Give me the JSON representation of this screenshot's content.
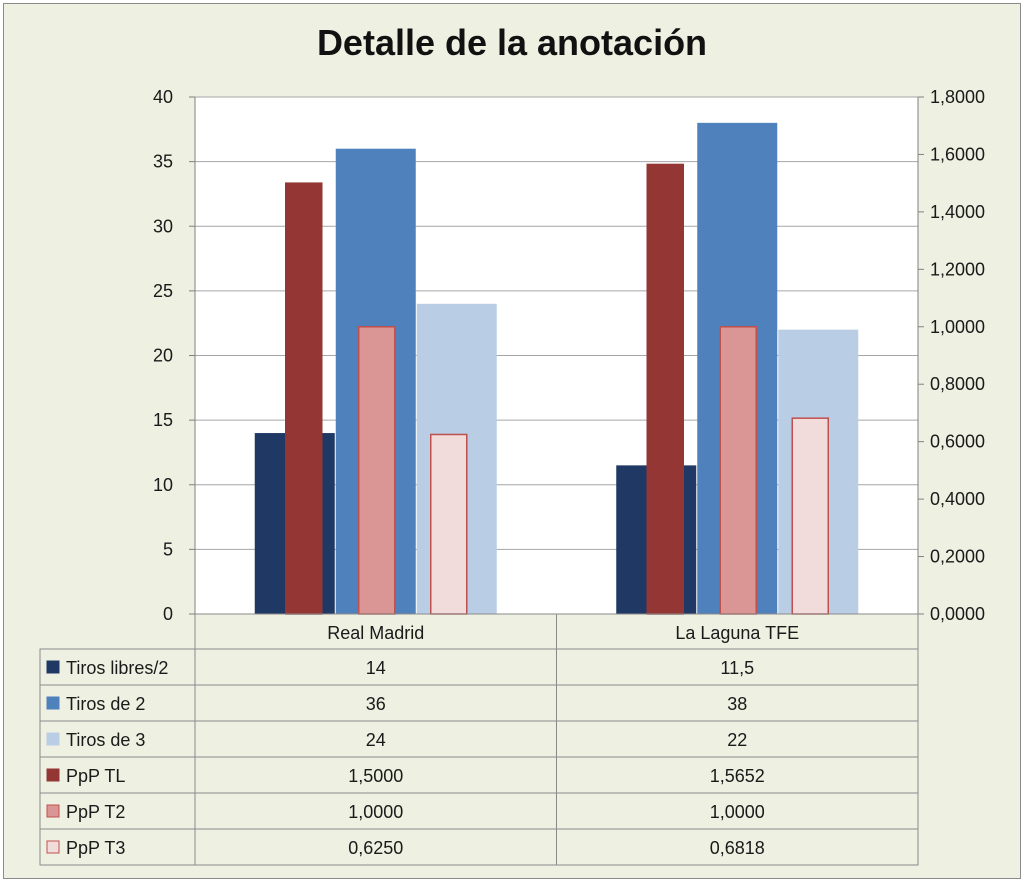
{
  "chart_data": {
    "type": "bar",
    "title": "Detalle de la anotación",
    "categories": [
      "Real Madrid",
      "La Laguna TFE"
    ],
    "y_left": {
      "min": 0,
      "max": 40,
      "ticks": [
        "0",
        "5",
        "10",
        "15",
        "20",
        "25",
        "30",
        "35",
        "40"
      ]
    },
    "y_right": {
      "min": 0,
      "max": 1.8,
      "ticks": [
        "0,0000",
        "0,2000",
        "0,4000",
        "0,6000",
        "0,8000",
        "1,0000",
        "1,2000",
        "1,4000",
        "1,6000",
        "1,8000"
      ]
    },
    "grid": true,
    "legend": "data-table",
    "series": [
      {
        "name": "Tiros libres/2",
        "axis": "left",
        "values": [
          14,
          11.5
        ],
        "labels": [
          "14",
          "11,5"
        ],
        "color": "#1f3864",
        "stroke": "#1f3864"
      },
      {
        "name": "Tiros de 2",
        "axis": "left",
        "values": [
          36,
          38
        ],
        "labels": [
          "36",
          "38"
        ],
        "color": "#4f81bd",
        "stroke": "#4f81bd"
      },
      {
        "name": "Tiros de 3",
        "axis": "left",
        "values": [
          24,
          22
        ],
        "labels": [
          "24",
          "22"
        ],
        "color": "#b9cde5",
        "stroke": "#b9cde5"
      },
      {
        "name": "PpP TL",
        "axis": "right",
        "values": [
          1.5,
          1.5652
        ],
        "labels": [
          "1,5000",
          "1,5652"
        ],
        "color": "#943634",
        "stroke": "#943634"
      },
      {
        "name": "PpP T2",
        "axis": "right",
        "values": [
          1.0,
          1.0
        ],
        "labels": [
          "1,0000",
          "1,0000"
        ],
        "color": "#da9694",
        "stroke": "#c0504d"
      },
      {
        "name": "PpP T3",
        "axis": "right",
        "values": [
          0.625,
          0.6818
        ],
        "labels": [
          "0,6250",
          "0,6818"
        ],
        "color": "#f2dcdb",
        "stroke": "#c0504d"
      }
    ]
  }
}
